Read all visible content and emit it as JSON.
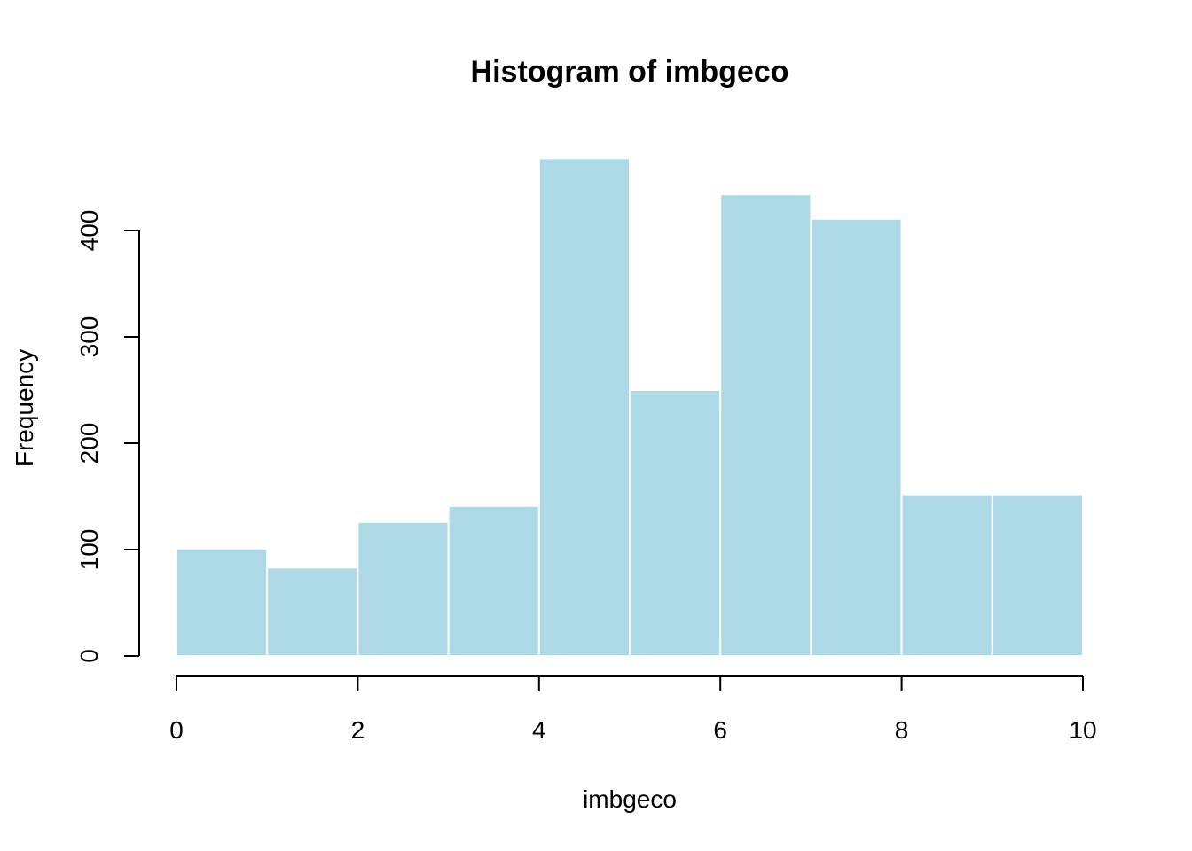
{
  "chart_data": {
    "type": "bar",
    "title": "Histogram of imbgeco",
    "xlabel": "imbgeco",
    "ylabel": "Frequency",
    "bins": [
      {
        "x0": 0,
        "x1": 1,
        "count": 101
      },
      {
        "x0": 1,
        "x1": 2,
        "count": 83
      },
      {
        "x0": 2,
        "x1": 3,
        "count": 126
      },
      {
        "x0": 3,
        "x1": 4,
        "count": 141
      },
      {
        "x0": 4,
        "x1": 5,
        "count": 468
      },
      {
        "x0": 5,
        "x1": 6,
        "count": 250
      },
      {
        "x0": 6,
        "x1": 7,
        "count": 434
      },
      {
        "x0": 7,
        "x1": 8,
        "count": 411
      },
      {
        "x0": 8,
        "x1": 9,
        "count": 152
      },
      {
        "x0": 9,
        "x1": 10,
        "count": 152
      }
    ],
    "xlim": [
      0,
      10
    ],
    "ylim": [
      0,
      468
    ],
    "x_ticks": [
      "0",
      "2",
      "4",
      "6",
      "8",
      "10"
    ],
    "y_ticks": [
      "0",
      "100",
      "200",
      "300",
      "400"
    ],
    "bar_color": "#add8e6",
    "bar_border_color": "#ffffff",
    "grid": false,
    "legend": "none"
  }
}
